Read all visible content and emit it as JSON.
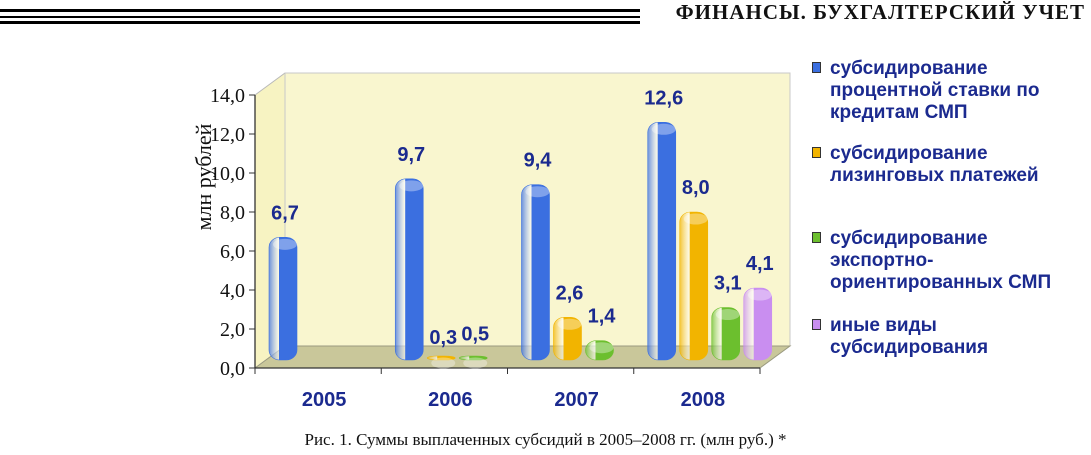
{
  "header": {
    "title": "ФИНАНСЫ. БУХГАЛТЕРСКИЙ УЧЕТ"
  },
  "caption": "Рис. 1. Суммы выплаченных субсидий в 2005–2008 гг. (млн руб.) *",
  "chart_data": {
    "type": "bar",
    "title": "",
    "ylabel": "млн рублей",
    "xlabel": "",
    "ylim": [
      0,
      14
    ],
    "yticks": [
      "0,0",
      "2,0",
      "4,0",
      "6,0",
      "8,0",
      "10,0",
      "12,0",
      "14,0"
    ],
    "categories": [
      "2005",
      "2006",
      "2007",
      "2008"
    ],
    "legend_position": "right",
    "grid": false,
    "series": [
      {
        "name": "субсидирование процентной ставки по кредитам  СМП",
        "color": "#3b6fe0",
        "values": [
          6.7,
          9.7,
          9.4,
          12.6
        ],
        "labels": [
          "6,7",
          "9,7",
          "9,4",
          "12,6"
        ]
      },
      {
        "name": "субсидирование лизинговых платежей",
        "color": "#f2b400",
        "values": [
          null,
          0.3,
          2.6,
          8.0
        ],
        "labels": [
          "",
          "0,3",
          "2,6",
          "8,0"
        ]
      },
      {
        "name": "субсидирование экспортно-ориентированных СМП",
        "color": "#6cbf2e",
        "values": [
          null,
          0.5,
          1.4,
          3.1
        ],
        "labels": [
          "",
          "0,5",
          "1,4",
          "3,1"
        ]
      },
      {
        "name": "иные виды субсидирования",
        "color": "#c98ef0",
        "values": [
          null,
          null,
          null,
          4.1
        ],
        "labels": [
          "",
          "",
          "",
          "4,1"
        ]
      }
    ]
  }
}
